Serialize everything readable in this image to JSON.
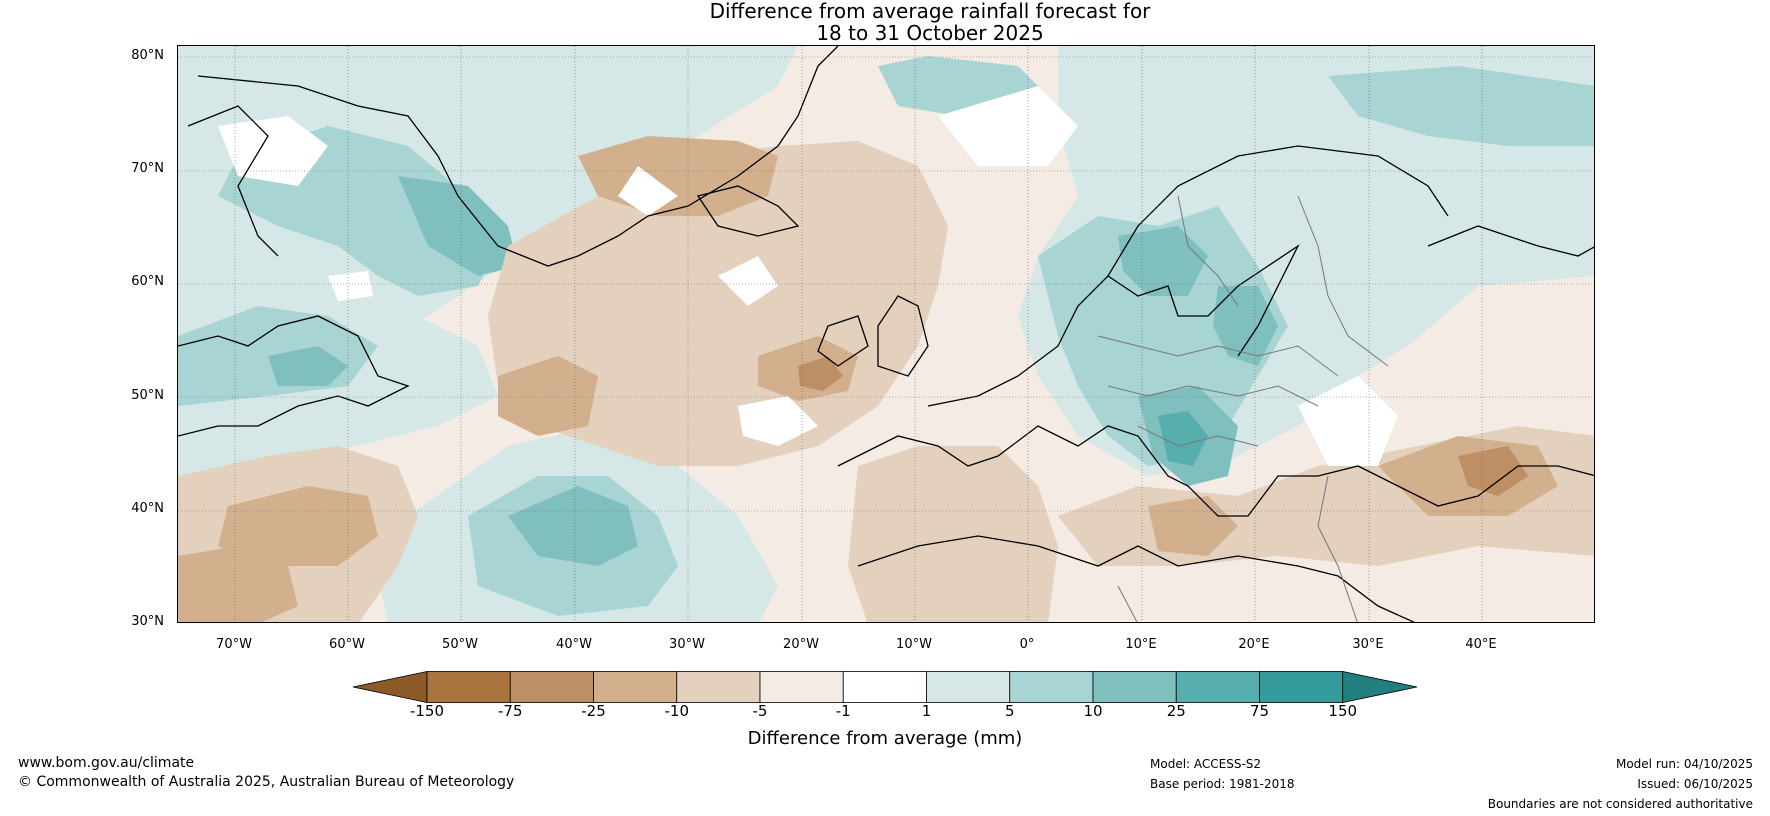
{
  "title": {
    "line1": "Difference from average rainfall forecast for",
    "line2": "18 to 31 October 2025"
  },
  "map": {
    "lat_labels": [
      "80°N",
      "70°N",
      "60°N",
      "50°N",
      "40°N",
      "30°N"
    ],
    "lon_labels": [
      "70°W",
      "60°W",
      "50°W",
      "40°W",
      "30°W",
      "20°W",
      "10°W",
      "0°",
      "10°E",
      "20°E",
      "30°E",
      "40°E"
    ],
    "extent": {
      "lon_min": -75,
      "lon_max": 50,
      "lat_min": 30,
      "lat_max": 81
    }
  },
  "colorbar": {
    "ticks": [
      "-150",
      "-75",
      "-25",
      "-10",
      "-5",
      "-1",
      "1",
      "5",
      "10",
      "25",
      "75",
      "150"
    ],
    "colors": [
      "#8c5a26",
      "#aa7441",
      "#be8f64",
      "#d2b08e",
      "#e3d0bd",
      "#f3ebe4",
      "#ffffff",
      "#d5e8e7",
      "#a8d4d4",
      "#7fbfbe",
      "#58adad",
      "#349a9a",
      "#227f7f"
    ],
    "label": "Difference from average (mm)"
  },
  "footer": {
    "url": "www.bom.gov.au/climate",
    "copyright": "© Commonwealth of Australia 2025, Australian Bureau of Meteorology",
    "model": "Model: ACCESS-S2",
    "base_period": "Base period: 1981-2018",
    "model_run": "Model run: 04/10/2025",
    "issued": "Issued: 06/10/2025",
    "disclaimer": "Boundaries are not considered authoritative"
  }
}
